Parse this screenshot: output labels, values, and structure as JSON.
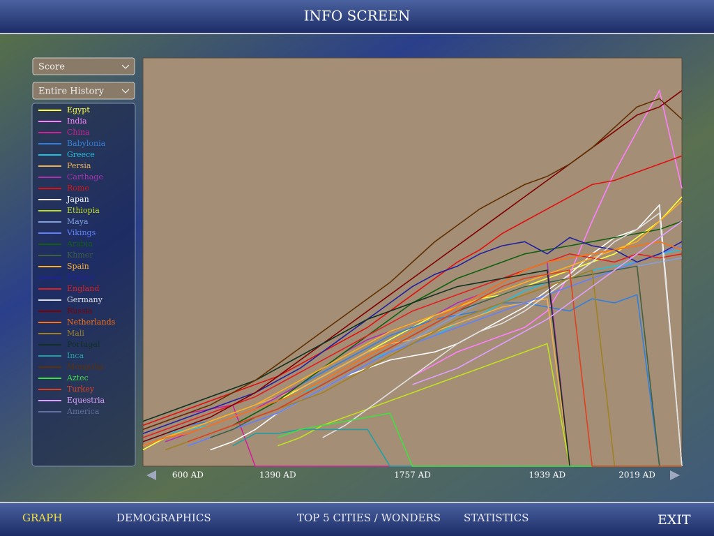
{
  "header": {
    "title": "INFO SCREEN"
  },
  "controls": {
    "metric": "Score",
    "range": "Entire History"
  },
  "tabs": [
    "GRAPH",
    "DEMOGRAPHICS",
    "TOP 5 CITIES / WONDERS",
    "STATISTICS"
  ],
  "exit": "EXIT",
  "chart_data": {
    "type": "line",
    "categories": [
      null,
      null,
      "600 AD",
      null,
      null,
      null,
      "1390 AD",
      null,
      null,
      null,
      null,
      null,
      "1757 AD",
      null,
      null,
      null,
      null,
      null,
      "1939 AD",
      null,
      null,
      null,
      "2019 AD",
      null,
      null
    ],
    "ylim": [
      0,
      100
    ],
    "series": [
      {
        "name": "Egypt",
        "color": "#ffff40",
        "values": [
          4,
          7,
          9,
          10,
          12,
          14,
          16,
          19,
          22,
          25,
          28,
          31,
          34,
          37,
          39,
          41,
          42,
          44,
          46,
          48,
          50,
          52,
          56,
          60,
          66
        ]
      },
      {
        "name": "India",
        "color": "#ff80ff",
        "values": [
          null,
          null,
          null,
          null,
          null,
          null,
          null,
          null,
          null,
          null,
          null,
          null,
          22,
          25,
          28,
          30,
          32,
          34,
          38,
          47,
          60,
          72,
          82,
          92,
          68
        ]
      },
      {
        "name": "China",
        "color": "#d0209a",
        "values": [
          9,
          11,
          13,
          14,
          15,
          0,
          0,
          0,
          0,
          0,
          0,
          0,
          0,
          0,
          0,
          0,
          0,
          0,
          0,
          0,
          0,
          0,
          0,
          0,
          0
        ]
      },
      {
        "name": "Babylonia",
        "color": "#3080e0",
        "values": [
          6,
          8,
          10,
          11,
          13,
          15,
          17,
          20,
          23,
          26,
          29,
          32,
          34,
          36,
          37,
          38,
          40,
          40,
          39,
          38,
          41,
          40,
          42,
          0,
          0
        ]
      },
      {
        "name": "Greece",
        "color": "#20c0e0",
        "values": [
          6,
          8,
          9,
          10,
          12,
          14,
          16,
          18,
          20,
          23,
          26,
          28,
          30,
          32,
          35,
          37,
          40,
          43,
          45,
          46,
          48,
          49,
          50,
          52,
          53
        ]
      },
      {
        "name": "Persia",
        "color": "#f0b050",
        "values": [
          5,
          7,
          9,
          11,
          13,
          15,
          17,
          19,
          22,
          25,
          28,
          30,
          31,
          33,
          35,
          37,
          39,
          40,
          41,
          0,
          0,
          0,
          0,
          0,
          0
        ]
      },
      {
        "name": "Carthage",
        "color": "#b030b0",
        "values": [
          null,
          6,
          8,
          10,
          12,
          14,
          17,
          20,
          24,
          28,
          31,
          33,
          35,
          37,
          40,
          42,
          45,
          48,
          50,
          0,
          0,
          0,
          0,
          0,
          0
        ]
      },
      {
        "name": "Rome",
        "color": "#e01010",
        "values": [
          10,
          12,
          14,
          16,
          18,
          20,
          22,
          25,
          28,
          31,
          34,
          38,
          42,
          46,
          50,
          53,
          57,
          60,
          63,
          66,
          69,
          70,
          72,
          74,
          76
        ]
      },
      {
        "name": "Japan",
        "color": "#ffffff",
        "values": [
          null,
          null,
          null,
          4,
          6,
          9,
          13,
          16,
          19,
          22,
          24,
          26,
          27,
          28,
          30,
          33,
          36,
          39,
          43,
          47,
          52,
          56,
          58,
          64,
          0
        ]
      },
      {
        "name": "Ethiopia",
        "color": "#c0e020",
        "values": [
          null,
          null,
          null,
          null,
          null,
          null,
          5,
          7,
          10,
          12,
          14,
          16,
          18,
          20,
          22,
          24,
          26,
          28,
          30,
          0,
          0,
          0,
          0,
          0,
          0
        ]
      },
      {
        "name": "Maya",
        "color": "#80a0e0",
        "values": [
          null,
          null,
          6,
          8,
          10,
          12,
          14,
          16,
          19,
          22,
          25,
          28,
          31,
          34,
          37,
          40,
          42,
          44,
          45,
          46,
          47,
          48,
          49,
          50,
          51
        ]
      },
      {
        "name": "Vikings",
        "color": "#6080ff",
        "values": [
          null,
          null,
          5,
          7,
          9,
          11,
          13,
          16,
          19,
          22,
          25,
          28,
          30,
          32,
          34,
          36,
          38,
          40,
          42,
          44,
          46,
          48,
          50,
          52,
          54
        ]
      },
      {
        "name": "Arabia",
        "color": "#106010",
        "values": [
          null,
          null,
          null,
          null,
          10,
          13,
          16,
          20,
          24,
          28,
          32,
          36,
          40,
          43,
          46,
          48,
          50,
          52,
          53,
          54,
          55,
          56,
          57,
          58,
          60
        ]
      },
      {
        "name": "Khmer",
        "color": "#406040",
        "values": [
          null,
          null,
          null,
          7,
          9,
          12,
          14,
          17,
          20,
          23,
          26,
          29,
          32,
          35,
          38,
          40,
          42,
          44,
          45,
          46,
          47,
          48,
          49,
          0,
          0
        ]
      },
      {
        "name": "Spain",
        "color": "#ffb020",
        "values": [
          5,
          7,
          9,
          11,
          13,
          15,
          18,
          21,
          24,
          27,
          30,
          33,
          35,
          37,
          39,
          41,
          43,
          45,
          47,
          49,
          51,
          53,
          55,
          60,
          65
        ]
      },
      {
        "name": "France",
        "color": "#2020a0",
        "values": [
          8,
          10,
          12,
          14,
          16,
          18,
          21,
          24,
          28,
          32,
          36,
          40,
          44,
          47,
          49,
          52,
          54,
          55,
          52,
          56,
          54,
          53,
          50,
          52,
          55
        ]
      },
      {
        "name": "England",
        "color": "#e02020",
        "values": [
          7,
          9,
          11,
          13,
          15,
          17,
          20,
          23,
          26,
          29,
          32,
          35,
          38,
          40,
          42,
          44,
          46,
          48,
          50,
          52,
          51,
          50,
          52,
          51,
          52
        ]
      },
      {
        "name": "Germany",
        "color": "#e0e0e0",
        "values": [
          null,
          null,
          null,
          null,
          null,
          null,
          null,
          null,
          7,
          10,
          14,
          18,
          22,
          26,
          30,
          33,
          35,
          38,
          42,
          46,
          50,
          55,
          58,
          62,
          0
        ]
      },
      {
        "name": "Russia",
        "color": "#800000",
        "values": [
          6,
          8,
          10,
          12,
          15,
          18,
          22,
          26,
          30,
          34,
          38,
          42,
          46,
          50,
          54,
          58,
          62,
          66,
          70,
          74,
          78,
          82,
          86,
          88,
          92
        ]
      },
      {
        "name": "Netherlands",
        "color": "#ff7010",
        "values": [
          5,
          7,
          8,
          10,
          12,
          14,
          16,
          18,
          21,
          24,
          27,
          30,
          33,
          36,
          39,
          42,
          45,
          48,
          50,
          51,
          52,
          53,
          54,
          55,
          53
        ]
      },
      {
        "name": "Mali",
        "color": "#a08020",
        "values": [
          null,
          4,
          6,
          8,
          10,
          12,
          14,
          16,
          18,
          21,
          24,
          27,
          30,
          33,
          36,
          38,
          40,
          42,
          44,
          46,
          48,
          0,
          0,
          0,
          0
        ]
      },
      {
        "name": "Portugal",
        "color": "#103020",
        "values": [
          11,
          13,
          15,
          17,
          19,
          21,
          24,
          27,
          30,
          33,
          36,
          38,
          40,
          42,
          44,
          45,
          46,
          47,
          48,
          0,
          0,
          0,
          0,
          0,
          0
        ]
      },
      {
        "name": "Inca",
        "color": "#20a0a0",
        "values": [
          null,
          null,
          null,
          null,
          5,
          8,
          8,
          9,
          9,
          9,
          9,
          0,
          0,
          0,
          0,
          0,
          0,
          0,
          0,
          0,
          0,
          0,
          0,
          0,
          0
        ]
      },
      {
        "name": "Mongolia",
        "color": "#603000",
        "values": [
          9,
          11,
          13,
          15,
          18,
          21,
          25,
          29,
          33,
          37,
          41,
          45,
          50,
          55,
          59,
          63,
          66,
          69,
          71,
          74,
          78,
          83,
          88,
          90,
          85
        ]
      },
      {
        "name": "Aztec",
        "color": "#40e040",
        "values": [
          null,
          null,
          null,
          null,
          null,
          null,
          7,
          9,
          10,
          11,
          12,
          13,
          0,
          0,
          0,
          0,
          0,
          0,
          0,
          0,
          0,
          0,
          0,
          0,
          0
        ]
      },
      {
        "name": "Turkey",
        "color": "#e04020",
        "values": [
          null,
          null,
          6,
          8,
          10,
          12,
          14,
          17,
          20,
          23,
          26,
          29,
          32,
          35,
          38,
          41,
          44,
          46,
          47,
          48,
          0,
          0,
          0,
          0,
          0
        ]
      },
      {
        "name": "Equestria",
        "color": "#e0a0ff",
        "values": [
          null,
          null,
          null,
          null,
          null,
          null,
          null,
          null,
          null,
          null,
          null,
          null,
          20,
          22,
          24,
          27,
          30,
          33,
          36,
          40,
          44,
          48,
          52,
          56,
          60
        ]
      },
      {
        "name": "America",
        "color": "#6070a0",
        "values": [
          null,
          null,
          null,
          null,
          null,
          null,
          null,
          null,
          null,
          null,
          null,
          null,
          null,
          null,
          null,
          null,
          null,
          null,
          null,
          null,
          null,
          null,
          null,
          null,
          null
        ]
      }
    ]
  }
}
